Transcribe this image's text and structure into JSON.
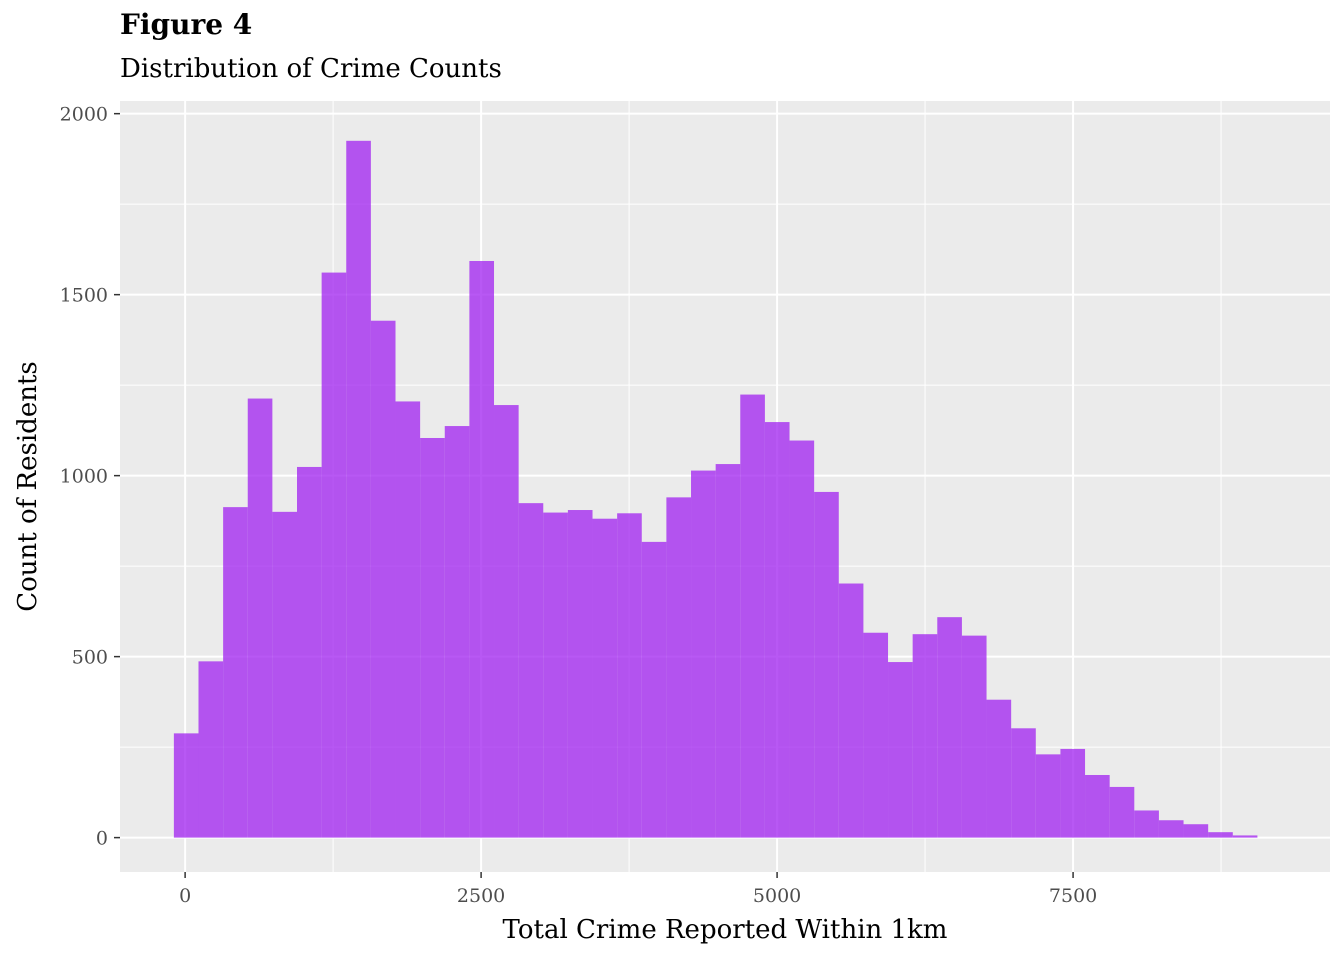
{
  "figure": {
    "label": "Figure 4",
    "subtitle": "Distribution of Crime Counts"
  },
  "chart_data": {
    "type": "bar",
    "title": "Figure 4",
    "subtitle": "Distribution of Crime Counts",
    "xlabel": "Total Crime Reported Within 1km",
    "ylabel": "Count of Residents",
    "bin_width": 208,
    "bin_start": -95,
    "values": [
      288,
      487,
      913,
      1213,
      900,
      1024,
      1561,
      1925,
      1428,
      1205,
      1104,
      1137,
      1593,
      1195,
      924,
      898,
      905,
      881,
      896,
      817,
      940,
      1014,
      1032,
      1224,
      1148,
      1097,
      955,
      702,
      566,
      485,
      562,
      609,
      558,
      381,
      302,
      230,
      245,
      173,
      140,
      75,
      48,
      37,
      15,
      6
    ],
    "xlim": [
      -550,
      9670
    ],
    "ylim": [
      -95,
      2035
    ],
    "xticks": [
      0,
      2500,
      5000,
      7500
    ],
    "xtick_labels": [
      "0",
      "2500",
      "5000",
      "7500"
    ],
    "yticks": [
      0,
      500,
      1000,
      1500,
      2000
    ],
    "ytick_labels": [
      "0",
      "500",
      "1000",
      "1500",
      "2000"
    ],
    "grid": true,
    "bar_color": "#a020f0",
    "bar_opacity": 0.75,
    "panel_color": "#ebebeb",
    "grid_color": "#ffffff"
  }
}
